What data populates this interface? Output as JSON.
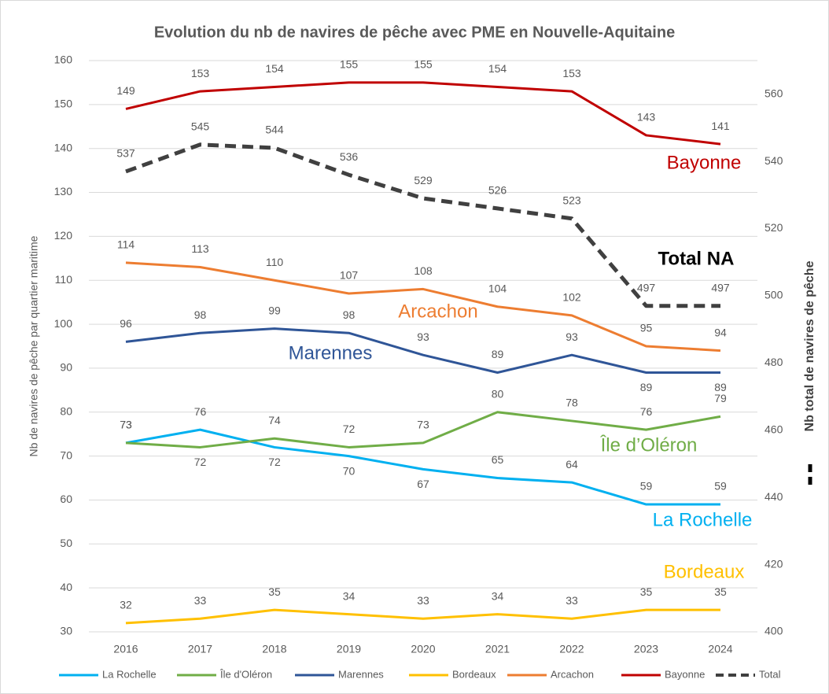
{
  "chart_data": {
    "type": "line",
    "title": "Evolution du nb de navires de pêche avec PME en Nouvelle-Aquitaine",
    "y_label": "Nb de navires de pêche par quartier maritime",
    "y2_label": "Nb total de navires de pêche",
    "categories": [
      "2016",
      "2017",
      "2018",
      "2019",
      "2020",
      "2021",
      "2022",
      "2023",
      "2024"
    ],
    "ylim": [
      30,
      160
    ],
    "yticks": [
      30,
      40,
      50,
      60,
      70,
      80,
      90,
      100,
      110,
      120,
      130,
      140,
      150,
      160
    ],
    "y2lim": [
      400,
      570
    ],
    "y2ticks": [
      400,
      420,
      440,
      460,
      480,
      500,
      520,
      540,
      560
    ],
    "grid": true,
    "legend": "bottom",
    "series": [
      {
        "name": "La Rochelle",
        "label": "La Rochelle",
        "color": "#00b0f0",
        "values": [
          73,
          76,
          72,
          70,
          67,
          65,
          64,
          59,
          59
        ]
      },
      {
        "name": "Île d'Oléron",
        "label": "Île d’Oléron",
        "color": "#70ad47",
        "values": [
          73,
          72,
          74,
          72,
          73,
          80,
          78,
          76,
          79
        ]
      },
      {
        "name": "Marennes",
        "label": "Marennes",
        "color": "#2f5597",
        "values": [
          96,
          98,
          99,
          98,
          93,
          89,
          93,
          89,
          89
        ]
      },
      {
        "name": "Bordeaux",
        "label": "Bordeaux",
        "color": "#ffc000",
        "values": [
          32,
          33,
          35,
          34,
          33,
          34,
          33,
          35,
          35
        ]
      },
      {
        "name": "Arcachon",
        "label": "Arcachon",
        "color": "#ed7d31",
        "values": [
          114,
          113,
          110,
          107,
          108,
          104,
          102,
          95,
          94
        ]
      },
      {
        "name": "Bayonne",
        "label": "Bayonne",
        "color": "#c00000",
        "values": [
          149,
          153,
          154,
          155,
          155,
          154,
          153,
          143,
          141
        ]
      },
      {
        "name": "Total",
        "label": "Total NA",
        "color": "#404040",
        "dashed": true,
        "axis": "y2",
        "values": [
          537,
          545,
          544,
          536,
          529,
          526,
          523,
          497,
          497
        ]
      }
    ]
  }
}
